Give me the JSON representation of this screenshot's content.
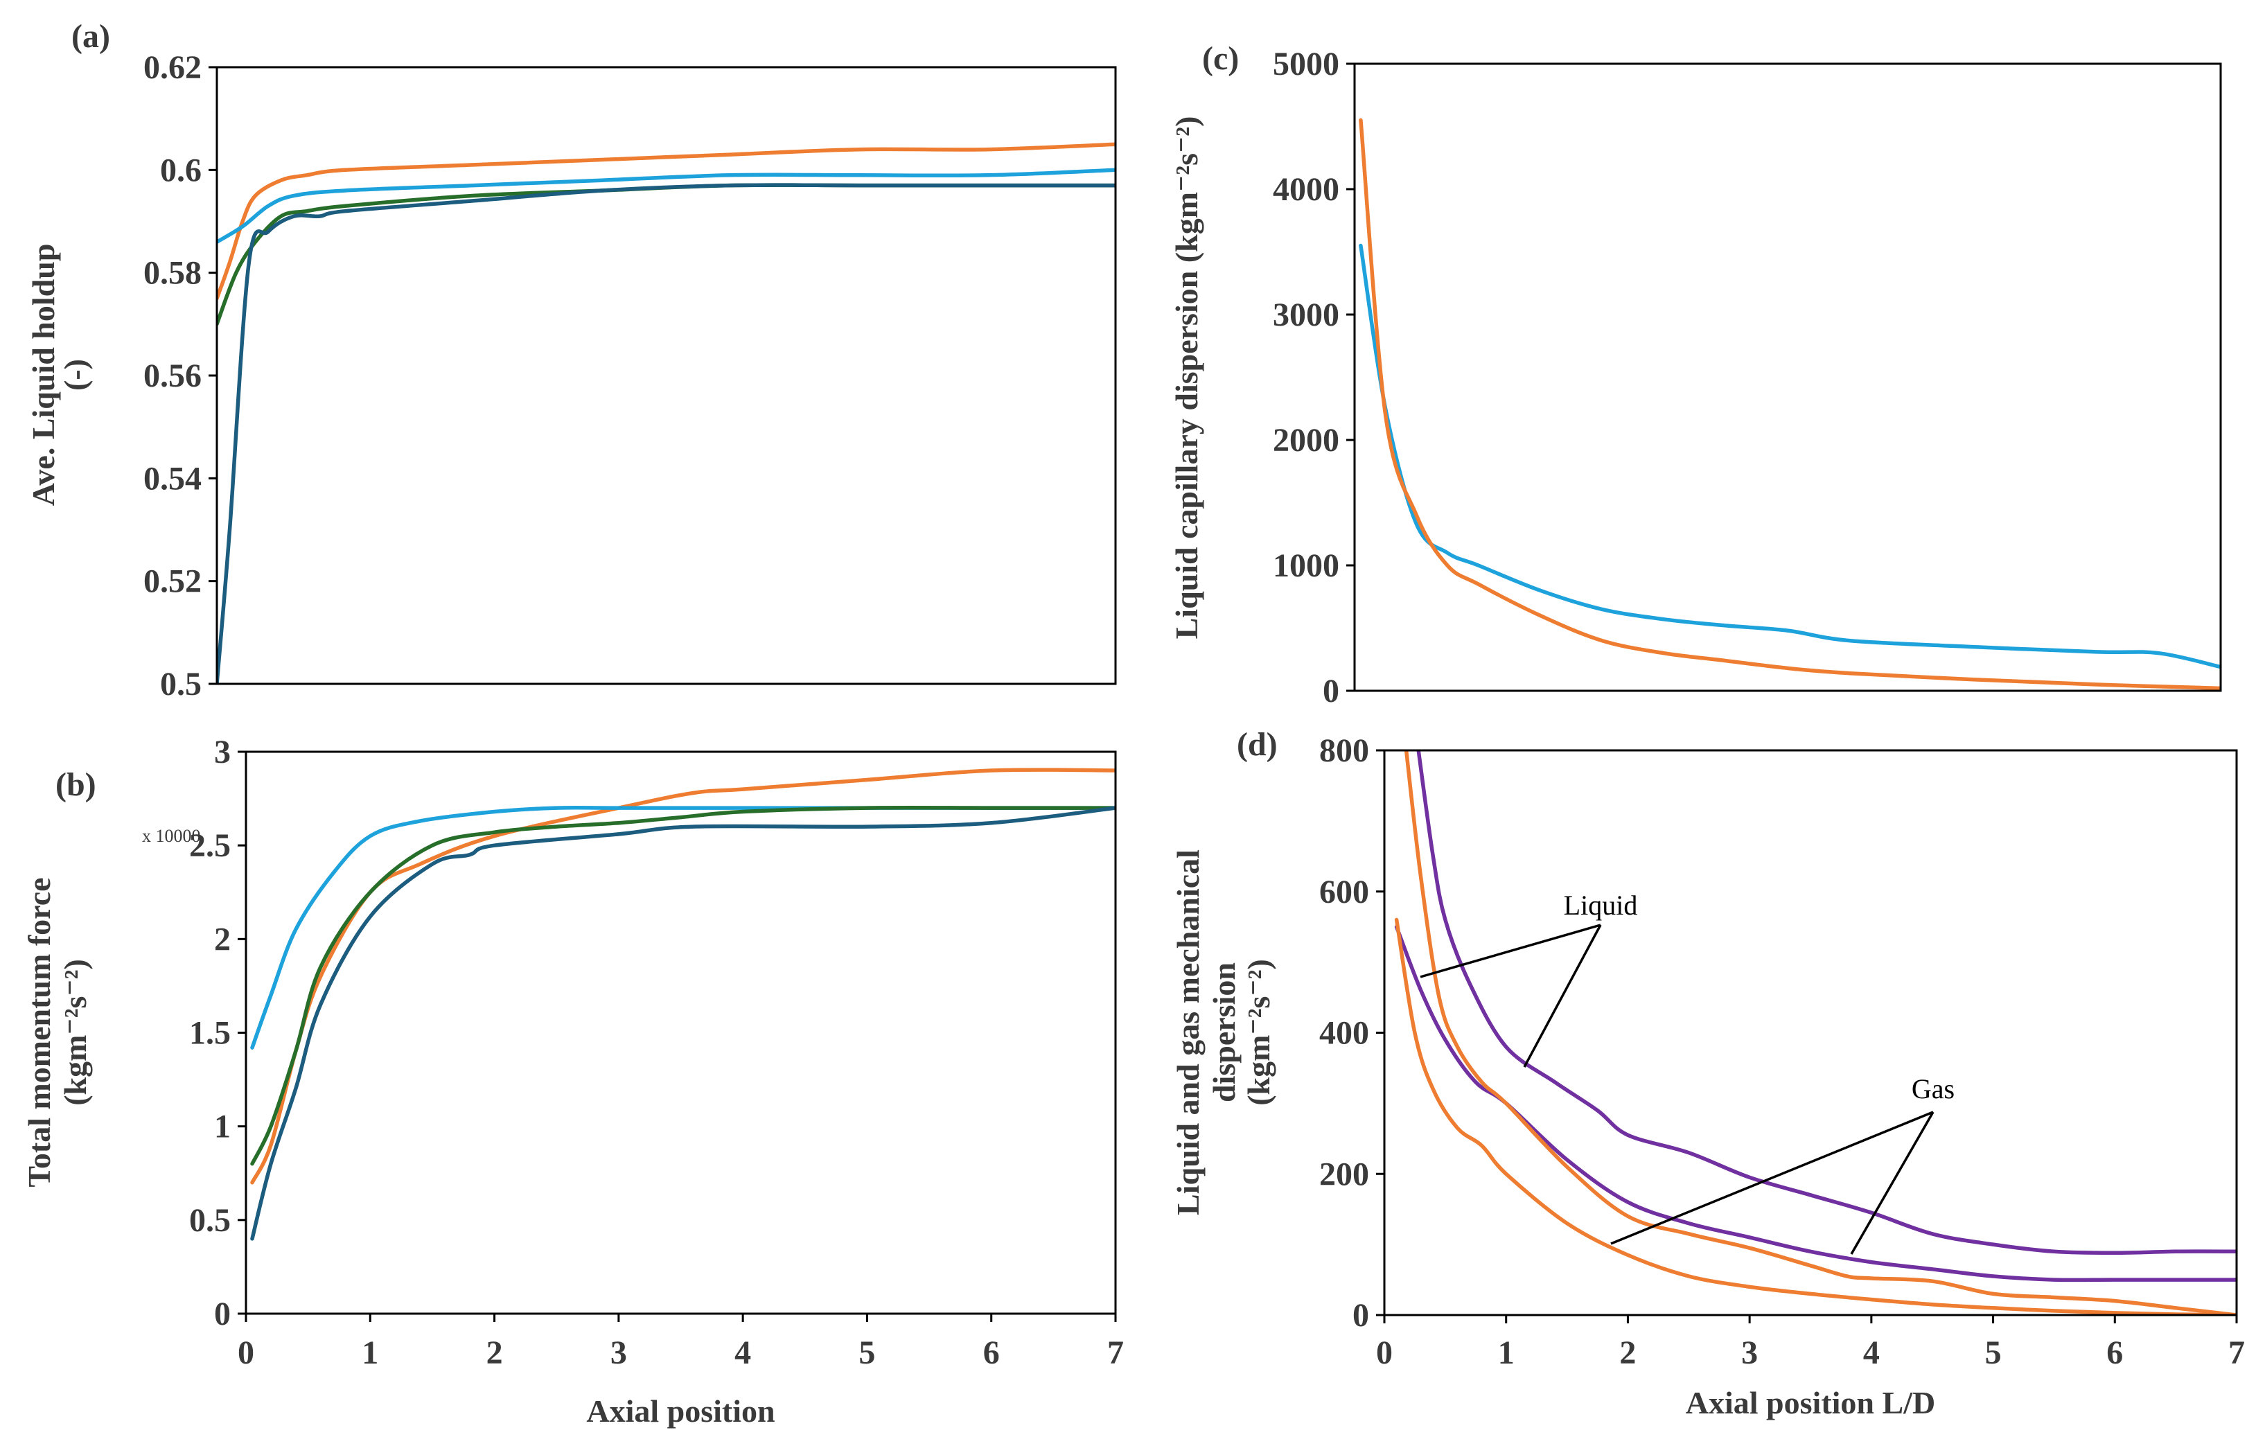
{
  "colors": {
    "orange": "#ee7d31",
    "blue": "#1ea2dc",
    "green": "#276e2a",
    "navy": "#1b5c7f",
    "purple": "#7030a0",
    "frame": "#000000"
  },
  "chart_data": [
    {
      "id": "a",
      "panel_label": "(a)",
      "type": "line",
      "xlabel": "",
      "ylabel": [
        "Ave. Liquid holdup",
        "(-)"
      ],
      "xlim": [
        0,
        7
      ],
      "ylim": [
        0.5,
        0.62
      ],
      "x_ticks": [],
      "y_ticks": [
        "0.5",
        "0.52",
        "0.54",
        "0.56",
        "0.58",
        "0.6",
        "0.62"
      ],
      "grid": false,
      "legend": "none",
      "series": [
        {
          "color": "orange",
          "points": [
            [
              0,
              0.575
            ],
            [
              0.1,
              0.582
            ],
            [
              0.2,
              0.59
            ],
            [
              0.3,
              0.595
            ],
            [
              0.5,
              0.598
            ],
            [
              0.7,
              0.599
            ],
            [
              1,
              0.6
            ],
            [
              2,
              0.601
            ],
            [
              3,
              0.602
            ],
            [
              4,
              0.603
            ],
            [
              5,
              0.604
            ],
            [
              6,
              0.604
            ],
            [
              7,
              0.605
            ]
          ]
        },
        {
          "color": "blue",
          "points": [
            [
              0,
              0.586
            ],
            [
              0.2,
              0.589
            ],
            [
              0.4,
              0.593
            ],
            [
              0.6,
              0.595
            ],
            [
              1,
              0.596
            ],
            [
              2,
              0.597
            ],
            [
              3,
              0.598
            ],
            [
              4,
              0.599
            ],
            [
              5,
              0.599
            ],
            [
              6,
              0.599
            ],
            [
              7,
              0.6
            ]
          ]
        },
        {
          "color": "green",
          "points": [
            [
              0,
              0.57
            ],
            [
              0.15,
              0.58
            ],
            [
              0.3,
              0.586
            ],
            [
              0.5,
              0.591
            ],
            [
              0.7,
              0.592
            ],
            [
              1,
              0.593
            ],
            [
              2,
              0.595
            ],
            [
              3,
              0.596
            ],
            [
              4,
              0.597
            ],
            [
              5,
              0.597
            ],
            [
              6,
              0.597
            ],
            [
              7,
              0.597
            ]
          ]
        },
        {
          "color": "navy",
          "points": [
            [
              0,
              0.5
            ],
            [
              0.1,
              0.53
            ],
            [
              0.25,
              0.582
            ],
            [
              0.4,
              0.588
            ],
            [
              0.6,
              0.591
            ],
            [
              0.8,
              0.591
            ],
            [
              1,
              0.592
            ],
            [
              2,
              0.594
            ],
            [
              3,
              0.596
            ],
            [
              4,
              0.597
            ],
            [
              5,
              0.597
            ],
            [
              6,
              0.597
            ],
            [
              7,
              0.597
            ]
          ]
        }
      ]
    },
    {
      "id": "b",
      "panel_label": "(b)",
      "type": "line",
      "xlabel": "Axial position",
      "ylabel": [
        "Total momentum force",
        "(kgm⁻²s⁻²)"
      ],
      "multiplier": "x 10000",
      "xlim": [
        0,
        7
      ],
      "ylim": [
        0,
        3
      ],
      "x_ticks": [
        "0",
        "1",
        "2",
        "3",
        "4",
        "5",
        "6",
        "7"
      ],
      "y_ticks": [
        "0",
        "0.5",
        "1",
        "1.5",
        "2",
        "2.5",
        "3"
      ],
      "grid": false,
      "legend": "none",
      "series": [
        {
          "color": "orange",
          "points": [
            [
              0.05,
              0.7
            ],
            [
              0.2,
              0.9
            ],
            [
              0.4,
              1.4
            ],
            [
              0.6,
              1.8
            ],
            [
              1,
              2.25
            ],
            [
              1.4,
              2.4
            ],
            [
              2,
              2.55
            ],
            [
              3,
              2.7
            ],
            [
              3.6,
              2.78
            ],
            [
              4,
              2.8
            ],
            [
              5,
              2.85
            ],
            [
              6,
              2.9
            ],
            [
              7,
              2.9
            ]
          ]
        },
        {
          "color": "blue",
          "points": [
            [
              0.05,
              1.42
            ],
            [
              0.2,
              1.7
            ],
            [
              0.4,
              2.05
            ],
            [
              0.7,
              2.35
            ],
            [
              1,
              2.55
            ],
            [
              1.4,
              2.63
            ],
            [
              2,
              2.68
            ],
            [
              2.5,
              2.7
            ],
            [
              3,
              2.7
            ],
            [
              4,
              2.7
            ],
            [
              5,
              2.7
            ],
            [
              6,
              2.7
            ],
            [
              7,
              2.7
            ]
          ]
        },
        {
          "color": "green",
          "points": [
            [
              0.05,
              0.8
            ],
            [
              0.2,
              1.0
            ],
            [
              0.4,
              1.4
            ],
            [
              0.6,
              1.85
            ],
            [
              1,
              2.25
            ],
            [
              1.5,
              2.5
            ],
            [
              2,
              2.57
            ],
            [
              2.5,
              2.6
            ],
            [
              3,
              2.62
            ],
            [
              3.5,
              2.65
            ],
            [
              4,
              2.68
            ],
            [
              5,
              2.7
            ],
            [
              6,
              2.7
            ],
            [
              7,
              2.7
            ]
          ]
        },
        {
          "color": "navy",
          "points": [
            [
              0.05,
              0.4
            ],
            [
              0.2,
              0.8
            ],
            [
              0.4,
              1.2
            ],
            [
              0.6,
              1.65
            ],
            [
              1,
              2.12
            ],
            [
              1.5,
              2.4
            ],
            [
              1.8,
              2.45
            ],
            [
              2,
              2.5
            ],
            [
              3,
              2.56
            ],
            [
              3.6,
              2.6
            ],
            [
              5,
              2.6
            ],
            [
              6,
              2.62
            ],
            [
              7,
              2.7
            ]
          ]
        }
      ]
    },
    {
      "id": "c",
      "panel_label": "(c)",
      "type": "line",
      "xlabel": "",
      "ylabel": [
        "Liquid capillary dispersion (kgm⁻²s⁻²)"
      ],
      "xlim": [
        0,
        7
      ],
      "ylim": [
        0,
        5000
      ],
      "x_ticks": [],
      "y_ticks": [
        "0",
        "1000",
        "2000",
        "3000",
        "4000",
        "5000"
      ],
      "grid": false,
      "legend": "none",
      "series": [
        {
          "color": "blue",
          "points": [
            [
              0.05,
              3550
            ],
            [
              0.25,
              2250
            ],
            [
              0.5,
              1330
            ],
            [
              0.75,
              1100
            ],
            [
              1,
              1000
            ],
            [
              1.5,
              800
            ],
            [
              2,
              650
            ],
            [
              2.5,
              570
            ],
            [
              3,
              520
            ],
            [
              3.5,
              480
            ],
            [
              4,
              400
            ],
            [
              5,
              350
            ],
            [
              6,
              310
            ],
            [
              6.5,
              300
            ],
            [
              7,
              190
            ]
          ]
        },
        {
          "color": "orange",
          "points": [
            [
              0.05,
              4550
            ],
            [
              0.25,
              2200
            ],
            [
              0.5,
              1400
            ],
            [
              0.75,
              1000
            ],
            [
              1,
              850
            ],
            [
              1.5,
              600
            ],
            [
              2,
              400
            ],
            [
              2.5,
              300
            ],
            [
              3,
              240
            ],
            [
              3.5,
              180
            ],
            [
              4,
              140
            ],
            [
              5,
              90
            ],
            [
              6,
              50
            ],
            [
              7,
              20
            ]
          ]
        }
      ]
    },
    {
      "id": "d",
      "panel_label": "(d)",
      "type": "line",
      "xlabel": "Axial position L/D",
      "ylabel": [
        "Liquid and gas mechanical",
        "dispersion",
        "(kgm⁻²s⁻²)"
      ],
      "xlim": [
        0,
        7
      ],
      "ylim": [
        0,
        800
      ],
      "x_ticks": [
        "0",
        "1",
        "2",
        "3",
        "4",
        "5",
        "6",
        "7"
      ],
      "y_ticks": [
        "0",
        "200",
        "400",
        "600",
        "800"
      ],
      "grid": false,
      "legend": "none",
      "series": [
        {
          "color": "purple",
          "points": [
            [
              0.28,
              800
            ],
            [
              0.4,
              650
            ],
            [
              0.5,
              560
            ],
            [
              0.7,
              470
            ],
            [
              1,
              380
            ],
            [
              1.4,
              330
            ],
            [
              1.75,
              290
            ],
            [
              2,
              255
            ],
            [
              2.5,
              230
            ],
            [
              3,
              195
            ],
            [
              3.5,
              170
            ],
            [
              4,
              145
            ],
            [
              4.5,
              115
            ],
            [
              5,
              100
            ],
            [
              5.5,
              90
            ],
            [
              6,
              88
            ],
            [
              6.5,
              90
            ],
            [
              7,
              90
            ]
          ]
        },
        {
          "color": "purple",
          "points": [
            [
              0.1,
              550
            ],
            [
              0.3,
              460
            ],
            [
              0.5,
              390
            ],
            [
              0.75,
              330
            ],
            [
              1,
              300
            ],
            [
              1.5,
              220
            ],
            [
              2,
              160
            ],
            [
              2.5,
              130
            ],
            [
              3,
              110
            ],
            [
              3.5,
              90
            ],
            [
              4,
              75
            ],
            [
              4.5,
              65
            ],
            [
              5,
              55
            ],
            [
              5.5,
              50
            ],
            [
              6,
              50
            ],
            [
              6.5,
              50
            ],
            [
              7,
              50
            ]
          ]
        },
        {
          "color": "orange",
          "points": [
            [
              0.18,
              800
            ],
            [
              0.3,
              620
            ],
            [
              0.45,
              450
            ],
            [
              0.6,
              380
            ],
            [
              0.8,
              330
            ],
            [
              1,
              300
            ],
            [
              1.5,
              210
            ],
            [
              2,
              140
            ],
            [
              2.5,
              115
            ],
            [
              3,
              95
            ],
            [
              3.5,
              70
            ],
            [
              3.8,
              55
            ],
            [
              4,
              52
            ],
            [
              4.5,
              48
            ],
            [
              5,
              30
            ],
            [
              5.5,
              25
            ],
            [
              6,
              20
            ],
            [
              6.5,
              10
            ],
            [
              7,
              0
            ]
          ]
        },
        {
          "color": "orange",
          "points": [
            [
              0.1,
              560
            ],
            [
              0.25,
              400
            ],
            [
              0.4,
              320
            ],
            [
              0.6,
              265
            ],
            [
              0.8,
              240
            ],
            [
              1,
              200
            ],
            [
              1.5,
              130
            ],
            [
              2,
              85
            ],
            [
              2.5,
              55
            ],
            [
              3,
              40
            ],
            [
              3.5,
              30
            ],
            [
              4,
              22
            ],
            [
              4.5,
              15
            ],
            [
              5,
              10
            ],
            [
              5.5,
              6
            ],
            [
              6,
              3
            ],
            [
              6.5,
              1
            ],
            [
              7,
              0
            ]
          ]
        }
      ],
      "annotations": [
        {
          "text": "Liquid"
        },
        {
          "text": "Gas"
        }
      ]
    }
  ]
}
